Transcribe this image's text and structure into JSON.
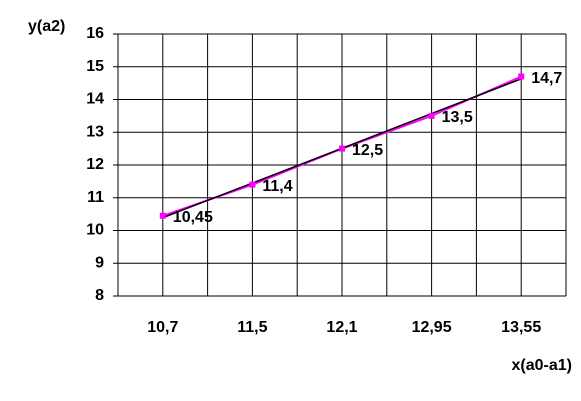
{
  "chart_data": {
    "type": "line",
    "y_label": "y(a2)",
    "x_label": "x(a0-a1)",
    "categories": [
      "10,7",
      "11,5",
      "12,1",
      "12,95",
      "13,55"
    ],
    "series": [
      {
        "color": "#ff00ff",
        "values": [
          10.45,
          11.4,
          12.5,
          13.5,
          14.7
        ],
        "value_labels": [
          "10,45",
          "11,4",
          "12,5",
          "13,5",
          "14,7"
        ]
      }
    ],
    "trendline": true,
    "ylim": [
      8,
      16
    ],
    "yticks": [
      8,
      9,
      10,
      11,
      12,
      13,
      14,
      15,
      16
    ],
    "grid": true
  }
}
